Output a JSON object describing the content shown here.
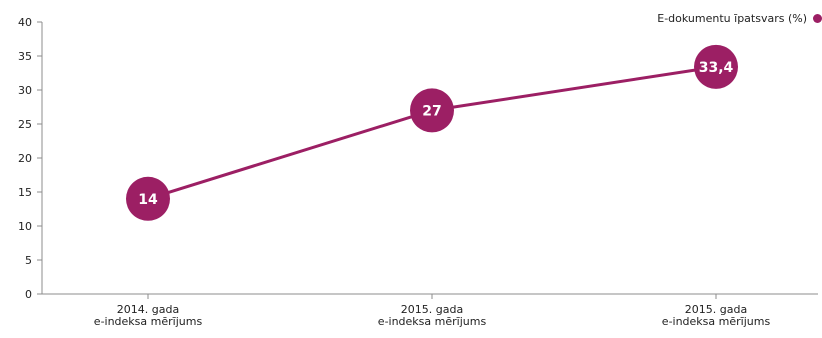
{
  "chart_data": {
    "type": "line",
    "categories": [
      "2014. gada\ne-indeksa mērījums",
      "2015. gada\ne-indeksa mērījums",
      "2015. gada\ne-indeksa mērījums"
    ],
    "series": [
      {
        "name": "E-dokumentu īpatsvars (%)",
        "values": [
          14,
          27,
          33.4
        ],
        "labels": [
          "14",
          "27",
          "33,4"
        ]
      }
    ],
    "ylim": [
      0,
      40
    ],
    "yticks": [
      0,
      5,
      10,
      15,
      20,
      25,
      30,
      35,
      40
    ],
    "grid": false,
    "legend_position": "top-right",
    "colors": {
      "series": "#9c1f64",
      "axis": "#8c8c8c",
      "label_text": "#ffffff",
      "tick_text": "#222222"
    }
  }
}
